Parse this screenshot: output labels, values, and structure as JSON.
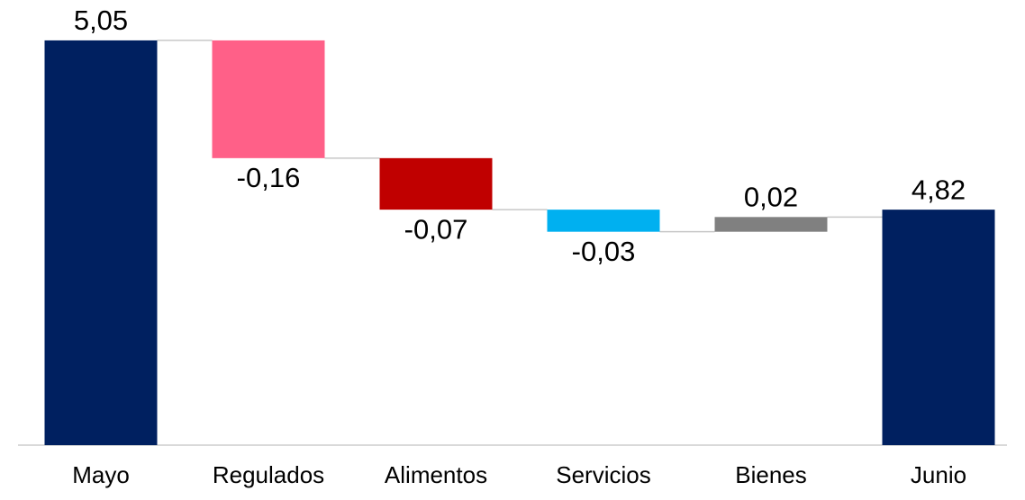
{
  "chart_data": {
    "type": "waterfall",
    "categories": [
      "Mayo",
      "Regulados",
      "Alimentos",
      "Servicios",
      "Bienes",
      "Junio"
    ],
    "values": [
      5.05,
      -0.16,
      -0.07,
      -0.03,
      0.02,
      4.82
    ],
    "value_labels": [
      "5,05",
      "-0,16",
      "-0,07",
      "-0,03",
      "0,02",
      "4,82"
    ],
    "measure": [
      "total",
      "relative",
      "relative",
      "relative",
      "relative",
      "total"
    ],
    "colors": [
      "#002060",
      "#ff6088",
      "#c00000",
      "#00b0f0",
      "#808080",
      "#002060"
    ],
    "ylim": [
      4.5,
      5.1
    ]
  }
}
